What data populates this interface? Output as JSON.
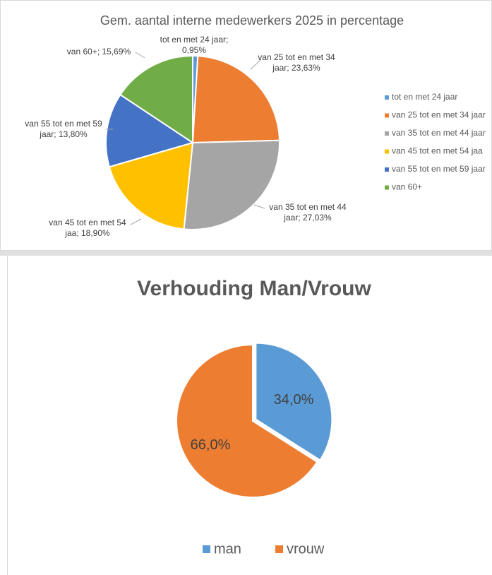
{
  "chart_data": [
    {
      "type": "pie",
      "title": "Gem. aantal interne medewerkers 2025 in percentage",
      "categories": [
        "tot en met 24 jaar",
        "van 25 tot en met 34 jaar",
        "van 35 tot en met 44 jaar",
        "van 45 tot en met 54 jaa",
        "van 55 tot en met 59 jaar",
        "van 60+"
      ],
      "values": [
        0.95,
        23.63,
        27.03,
        18.9,
        13.8,
        15.69
      ],
      "value_labels": [
        "tot en met 24 jaar; 0,95%",
        "van 25 tot en met 34 jaar; 23,63%",
        "van 35 tot en met 44 jaar; 27,03%",
        "van 45 tot en met 54 jaa; 18,90%",
        "van 55 tot en met 59 jaar; 13,80%",
        "van 60+; 15,69%"
      ],
      "colors": [
        "#5b9bd5",
        "#ed7d31",
        "#a5a5a5",
        "#ffc000",
        "#4472c4",
        "#70ad47"
      ],
      "legend": "right"
    },
    {
      "type": "pie",
      "title": "Verhouding Man/Vrouw",
      "categories": [
        "man",
        "vrouw"
      ],
      "values": [
        34.0,
        66.0
      ],
      "value_labels": [
        "34,0%",
        "66,0%"
      ],
      "colors": [
        "#5b9bd5",
        "#ed7d31"
      ],
      "legend": "bottom"
    }
  ]
}
